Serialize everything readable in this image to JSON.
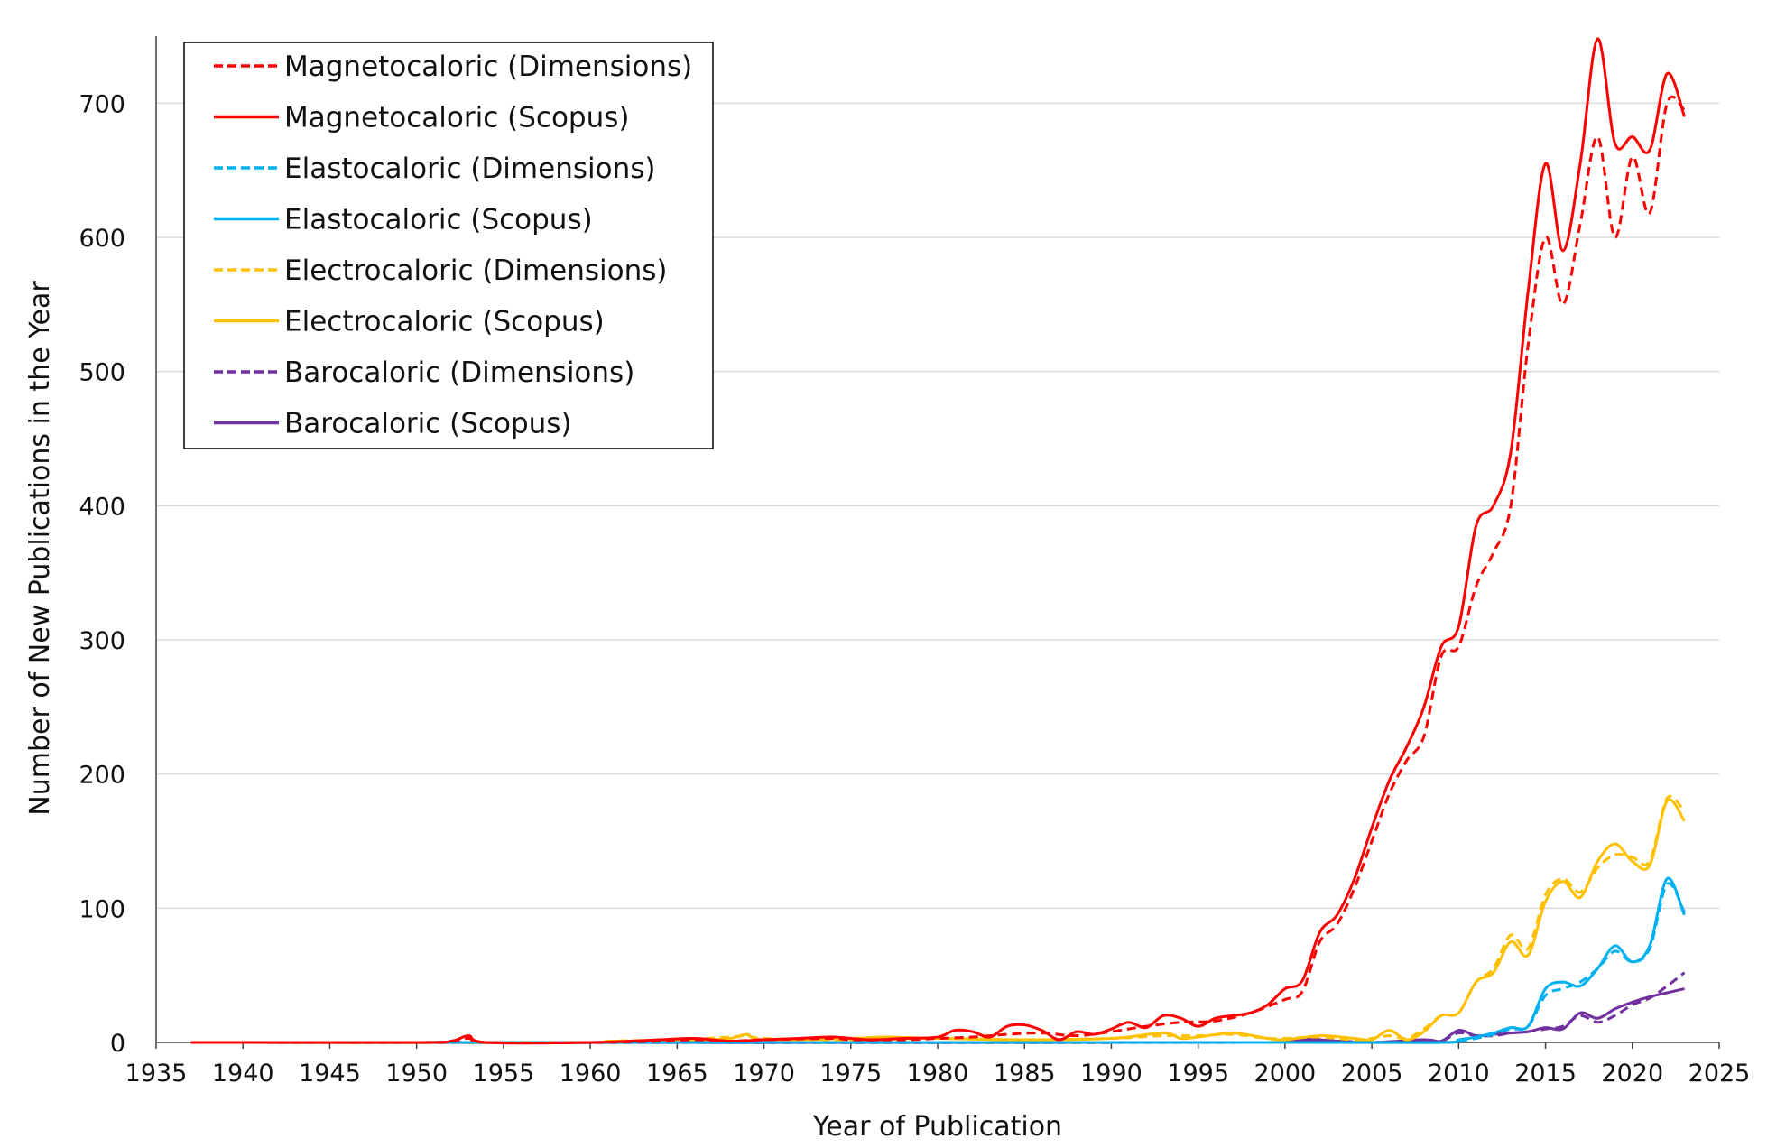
{
  "chart_data": {
    "type": "line",
    "title": "",
    "xlabel": "Year of Publication",
    "ylabel": "Number of New Publications in the Year",
    "xlim": [
      1935,
      2025
    ],
    "ylim": [
      0,
      750
    ],
    "xticks": [
      1935,
      1940,
      1945,
      1950,
      1955,
      1960,
      1965,
      1970,
      1975,
      1980,
      1985,
      1990,
      1995,
      2000,
      2005,
      2010,
      2015,
      2020,
      2025
    ],
    "yticks": [
      0,
      100,
      200,
      300,
      400,
      500,
      600,
      700
    ],
    "grid": "horizontal",
    "legend_position": "top-left",
    "series": [
      {
        "name": "Magnetocaloric (Dimensions)",
        "color": "#ff0000",
        "dash": "dashed",
        "points": [
          [
            1937,
            0
          ],
          [
            1950,
            0
          ],
          [
            1952,
            1
          ],
          [
            1953,
            3
          ],
          [
            1954,
            0
          ],
          [
            1960,
            0
          ],
          [
            1964,
            1
          ],
          [
            1966,
            2
          ],
          [
            1968,
            1
          ],
          [
            1970,
            2
          ],
          [
            1974,
            3
          ],
          [
            1975,
            2
          ],
          [
            1978,
            2
          ],
          [
            1980,
            3
          ],
          [
            1982,
            4
          ],
          [
            1984,
            6
          ],
          [
            1986,
            7
          ],
          [
            1988,
            5
          ],
          [
            1990,
            8
          ],
          [
            1992,
            12
          ],
          [
            1994,
            15
          ],
          [
            1996,
            16
          ],
          [
            1998,
            22
          ],
          [
            2000,
            32
          ],
          [
            2001,
            38
          ],
          [
            2002,
            75
          ],
          [
            2003,
            88
          ],
          [
            2004,
            115
          ],
          [
            2005,
            150
          ],
          [
            2006,
            185
          ],
          [
            2007,
            210
          ],
          [
            2008,
            228
          ],
          [
            2009,
            288
          ],
          [
            2010,
            295
          ],
          [
            2011,
            340
          ],
          [
            2012,
            365
          ],
          [
            2013,
            400
          ],
          [
            2014,
            520
          ],
          [
            2015,
            600
          ],
          [
            2016,
            550
          ],
          [
            2017,
            610
          ],
          [
            2018,
            675
          ],
          [
            2019,
            600
          ],
          [
            2020,
            660
          ],
          [
            2021,
            618
          ],
          [
            2022,
            700
          ],
          [
            2023,
            695
          ]
        ]
      },
      {
        "name": "Magnetocaloric (Scopus)",
        "color": "#ff0000",
        "dash": "solid",
        "points": [
          [
            1937,
            0
          ],
          [
            1950,
            0
          ],
          [
            1952,
            1
          ],
          [
            1953,
            5
          ],
          [
            1954,
            0
          ],
          [
            1960,
            0
          ],
          [
            1964,
            2
          ],
          [
            1966,
            3
          ],
          [
            1968,
            1
          ],
          [
            1970,
            2
          ],
          [
            1972,
            3
          ],
          [
            1974,
            4
          ],
          [
            1976,
            2
          ],
          [
            1978,
            3
          ],
          [
            1980,
            4
          ],
          [
            1981,
            9
          ],
          [
            1982,
            8
          ],
          [
            1983,
            4
          ],
          [
            1984,
            12
          ],
          [
            1985,
            13
          ],
          [
            1986,
            9
          ],
          [
            1987,
            2
          ],
          [
            1988,
            8
          ],
          [
            1989,
            6
          ],
          [
            1990,
            10
          ],
          [
            1991,
            15
          ],
          [
            1992,
            11
          ],
          [
            1993,
            20
          ],
          [
            1994,
            18
          ],
          [
            1995,
            12
          ],
          [
            1996,
            18
          ],
          [
            1997,
            20
          ],
          [
            1998,
            22
          ],
          [
            1999,
            28
          ],
          [
            2000,
            40
          ],
          [
            2001,
            46
          ],
          [
            2002,
            82
          ],
          [
            2003,
            95
          ],
          [
            2004,
            122
          ],
          [
            2005,
            160
          ],
          [
            2006,
            195
          ],
          [
            2007,
            220
          ],
          [
            2008,
            250
          ],
          [
            2009,
            295
          ],
          [
            2010,
            310
          ],
          [
            2011,
            385
          ],
          [
            2012,
            400
          ],
          [
            2013,
            440
          ],
          [
            2014,
            560
          ],
          [
            2015,
            655
          ],
          [
            2016,
            590
          ],
          [
            2017,
            655
          ],
          [
            2018,
            748
          ],
          [
            2019,
            670
          ],
          [
            2020,
            675
          ],
          [
            2021,
            665
          ],
          [
            2022,
            722
          ],
          [
            2023,
            690
          ]
        ]
      },
      {
        "name": "Elastocaloric (Dimensions)",
        "color": "#00b0f0",
        "dash": "dashed",
        "points": [
          [
            1937,
            0
          ],
          [
            2000,
            0
          ],
          [
            2009,
            0
          ],
          [
            2010,
            1
          ],
          [
            2011,
            3
          ],
          [
            2012,
            6
          ],
          [
            2013,
            10
          ],
          [
            2014,
            12
          ],
          [
            2015,
            35
          ],
          [
            2016,
            40
          ],
          [
            2017,
            45
          ],
          [
            2018,
            55
          ],
          [
            2019,
            68
          ],
          [
            2020,
            60
          ],
          [
            2021,
            70
          ],
          [
            2022,
            118
          ],
          [
            2023,
            97
          ]
        ]
      },
      {
        "name": "Elastocaloric (Scopus)",
        "color": "#00b0f0",
        "dash": "solid",
        "points": [
          [
            1937,
            0
          ],
          [
            2000,
            0
          ],
          [
            2009,
            0
          ],
          [
            2010,
            2
          ],
          [
            2011,
            4
          ],
          [
            2012,
            7
          ],
          [
            2013,
            11
          ],
          [
            2014,
            12
          ],
          [
            2015,
            40
          ],
          [
            2016,
            45
          ],
          [
            2017,
            42
          ],
          [
            2018,
            55
          ],
          [
            2019,
            72
          ],
          [
            2020,
            60
          ],
          [
            2021,
            72
          ],
          [
            2022,
            122
          ],
          [
            2023,
            95
          ]
        ]
      },
      {
        "name": "Electrocaloric (Dimensions)",
        "color": "#ffc000",
        "dash": "dashed",
        "points": [
          [
            1937,
            0
          ],
          [
            1960,
            0
          ],
          [
            1961,
            1
          ],
          [
            1965,
            2
          ],
          [
            1968,
            4
          ],
          [
            1969,
            5
          ],
          [
            1970,
            3
          ],
          [
            1975,
            2
          ],
          [
            1980,
            3
          ],
          [
            1985,
            2
          ],
          [
            1990,
            3
          ],
          [
            1993,
            5
          ],
          [
            1995,
            5
          ],
          [
            1997,
            6
          ],
          [
            1999,
            3
          ],
          [
            2000,
            3
          ],
          [
            2002,
            4
          ],
          [
            2004,
            2
          ],
          [
            2005,
            3
          ],
          [
            2006,
            5
          ],
          [
            2007,
            3
          ],
          [
            2008,
            10
          ],
          [
            2009,
            20
          ],
          [
            2010,
            22
          ],
          [
            2011,
            45
          ],
          [
            2012,
            55
          ],
          [
            2013,
            80
          ],
          [
            2014,
            70
          ],
          [
            2015,
            110
          ],
          [
            2016,
            122
          ],
          [
            2017,
            112
          ],
          [
            2018,
            130
          ],
          [
            2019,
            140
          ],
          [
            2020,
            138
          ],
          [
            2021,
            135
          ],
          [
            2022,
            182
          ],
          [
            2023,
            172
          ]
        ]
      },
      {
        "name": "Electrocaloric (Scopus)",
        "color": "#ffc000",
        "dash": "solid",
        "points": [
          [
            1937,
            0
          ],
          [
            1960,
            0
          ],
          [
            1961,
            1
          ],
          [
            1965,
            1
          ],
          [
            1968,
            3
          ],
          [
            1969,
            6
          ],
          [
            1970,
            2
          ],
          [
            1975,
            3
          ],
          [
            1977,
            4
          ],
          [
            1980,
            3
          ],
          [
            1985,
            2
          ],
          [
            1990,
            3
          ],
          [
            1993,
            7
          ],
          [
            1994,
            3
          ],
          [
            1995,
            4
          ],
          [
            1997,
            7
          ],
          [
            1999,
            3
          ],
          [
            2000,
            2
          ],
          [
            2002,
            5
          ],
          [
            2004,
            3
          ],
          [
            2005,
            2
          ],
          [
            2006,
            9
          ],
          [
            2007,
            2
          ],
          [
            2008,
            8
          ],
          [
            2009,
            20
          ],
          [
            2010,
            22
          ],
          [
            2011,
            45
          ],
          [
            2012,
            52
          ],
          [
            2013,
            75
          ],
          [
            2014,
            65
          ],
          [
            2015,
            105
          ],
          [
            2016,
            120
          ],
          [
            2017,
            108
          ],
          [
            2018,
            135
          ],
          [
            2019,
            148
          ],
          [
            2020,
            135
          ],
          [
            2021,
            132
          ],
          [
            2022,
            180
          ],
          [
            2023,
            165
          ]
        ]
      },
      {
        "name": "Barocaloric (Dimensions)",
        "color": "#7030a0",
        "dash": "dashed",
        "points": [
          [
            1937,
            0
          ],
          [
            1999,
            0
          ],
          [
            2000,
            2
          ],
          [
            2001,
            3
          ],
          [
            2002,
            2
          ],
          [
            2003,
            1
          ],
          [
            2005,
            0
          ],
          [
            2008,
            2
          ],
          [
            2009,
            1
          ],
          [
            2010,
            7
          ],
          [
            2011,
            5
          ],
          [
            2012,
            5
          ],
          [
            2013,
            7
          ],
          [
            2014,
            8
          ],
          [
            2015,
            10
          ],
          [
            2016,
            12
          ],
          [
            2017,
            20
          ],
          [
            2018,
            15
          ],
          [
            2019,
            20
          ],
          [
            2020,
            28
          ],
          [
            2021,
            33
          ],
          [
            2022,
            42
          ],
          [
            2023,
            52
          ]
        ]
      },
      {
        "name": "Barocaloric (Scopus)",
        "color": "#7030a0",
        "dash": "solid",
        "points": [
          [
            1937,
            0
          ],
          [
            1999,
            0
          ],
          [
            2000,
            2
          ],
          [
            2001,
            3
          ],
          [
            2002,
            2
          ],
          [
            2003,
            1
          ],
          [
            2005,
            0
          ],
          [
            2008,
            2
          ],
          [
            2009,
            1
          ],
          [
            2010,
            9
          ],
          [
            2011,
            5
          ],
          [
            2012,
            6
          ],
          [
            2013,
            7
          ],
          [
            2014,
            8
          ],
          [
            2015,
            11
          ],
          [
            2016,
            10
          ],
          [
            2017,
            22
          ],
          [
            2018,
            18
          ],
          [
            2019,
            25
          ],
          [
            2020,
            30
          ],
          [
            2021,
            34
          ],
          [
            2022,
            37
          ],
          [
            2023,
            40
          ]
        ]
      }
    ]
  }
}
